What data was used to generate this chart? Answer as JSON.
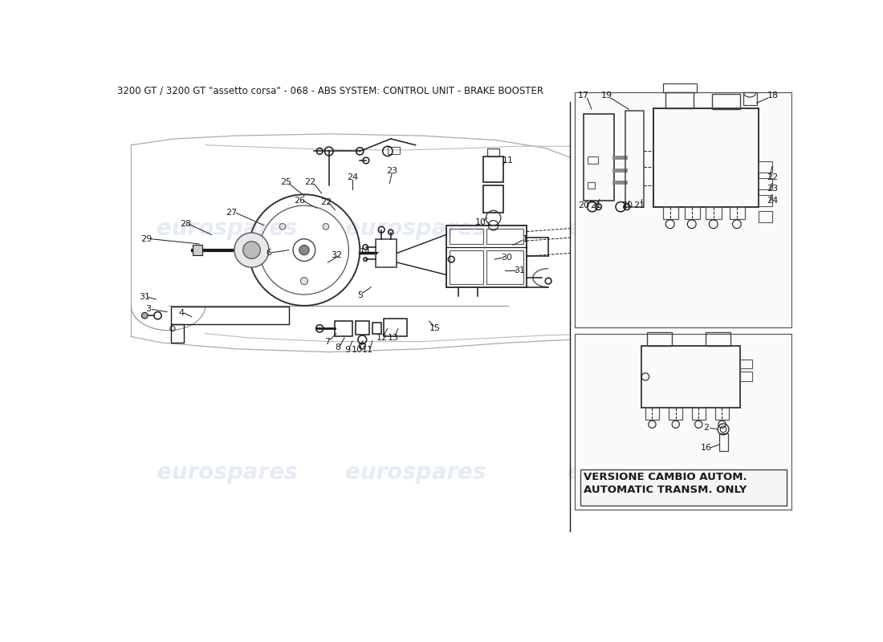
{
  "title": "3200 GT / 3200 GT \"assetto corsa\" - 068 - ABS SYSTEM: CONTROL UNIT - BRAKE BOOSTER",
  "bg_color": "#ffffff",
  "title_fontsize": 8.5,
  "watermark_text": "eurospares",
  "watermark_color": "#c8d4e8",
  "watermark_alpha": 0.45,
  "line_color": "#1a1a1a",
  "line_width": 1.1,
  "versione_text1": "VERSIONE CAMBIO AUTOM.",
  "versione_text2": "AUTOMATIC TRANSM. ONLY",
  "versione_fontsize": 9.5
}
